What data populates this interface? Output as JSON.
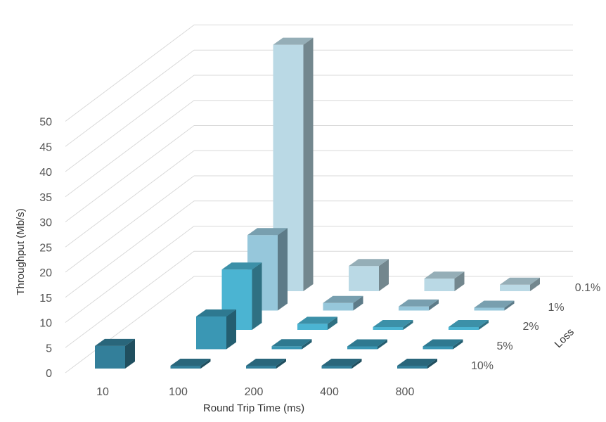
{
  "chart_data": {
    "type": "bar",
    "subtype": "3d-column",
    "title": "",
    "xlabel": "Round Trip Time (ms)",
    "ylabel": "Throughput (Mb/s)",
    "zlabel": "Loss",
    "ylim": [
      0,
      50
    ],
    "yticks": [
      0,
      5,
      10,
      15,
      20,
      25,
      30,
      35,
      40,
      45,
      50
    ],
    "grid": true,
    "categories": [
      "10",
      "100",
      "200",
      "400",
      "800"
    ],
    "series": [
      {
        "name": "0.1%",
        "color": "#BAD9E5",
        "values": [
          null,
          49,
          5,
          2.5,
          1.3
        ]
      },
      {
        "name": "1%",
        "color": "#96C7DB",
        "values": [
          null,
          15,
          1.5,
          0.8,
          0.5
        ]
      },
      {
        "name": "2%",
        "color": "#4BB4D2",
        "values": [
          null,
          12,
          1.2,
          0.5,
          0.3
        ]
      },
      {
        "name": "5%",
        "color": "#3A97B4",
        "values": [
          null,
          6.5,
          0.6,
          0.3,
          0.2
        ]
      },
      {
        "name": "10%",
        "color": "#337F9A",
        "values": [
          4.5,
          0.3,
          0.2,
          0.1,
          0.1
        ]
      }
    ]
  }
}
